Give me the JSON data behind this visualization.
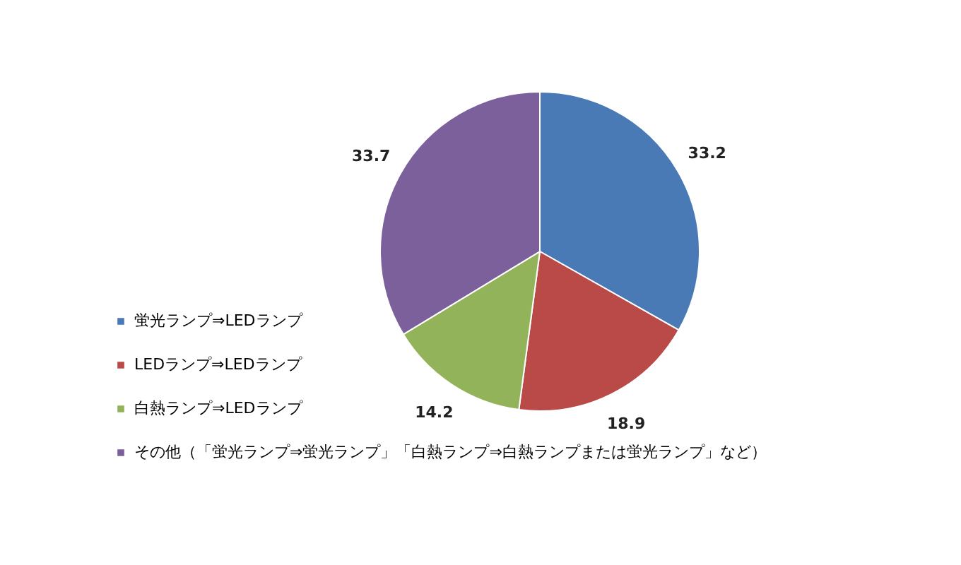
{
  "chart_data": {
    "type": "pie",
    "categories": [
      "蛍光ランプ⇒LEDランプ",
      "LEDランプ⇒LEDランプ",
      "白熱ランプ⇒LEDランプ",
      "その他（「蛍光ランプ⇒蛍光ランプ」「白熱ランプ⇒白熱ランプまたは蛍光ランプ」など）"
    ],
    "values": [
      33.2,
      18.9,
      14.2,
      33.7
    ],
    "colors": [
      "#4a7ab5",
      "#b94a48",
      "#93b35a",
      "#7b609b"
    ],
    "data_labels": true,
    "legend": "bottom left"
  }
}
